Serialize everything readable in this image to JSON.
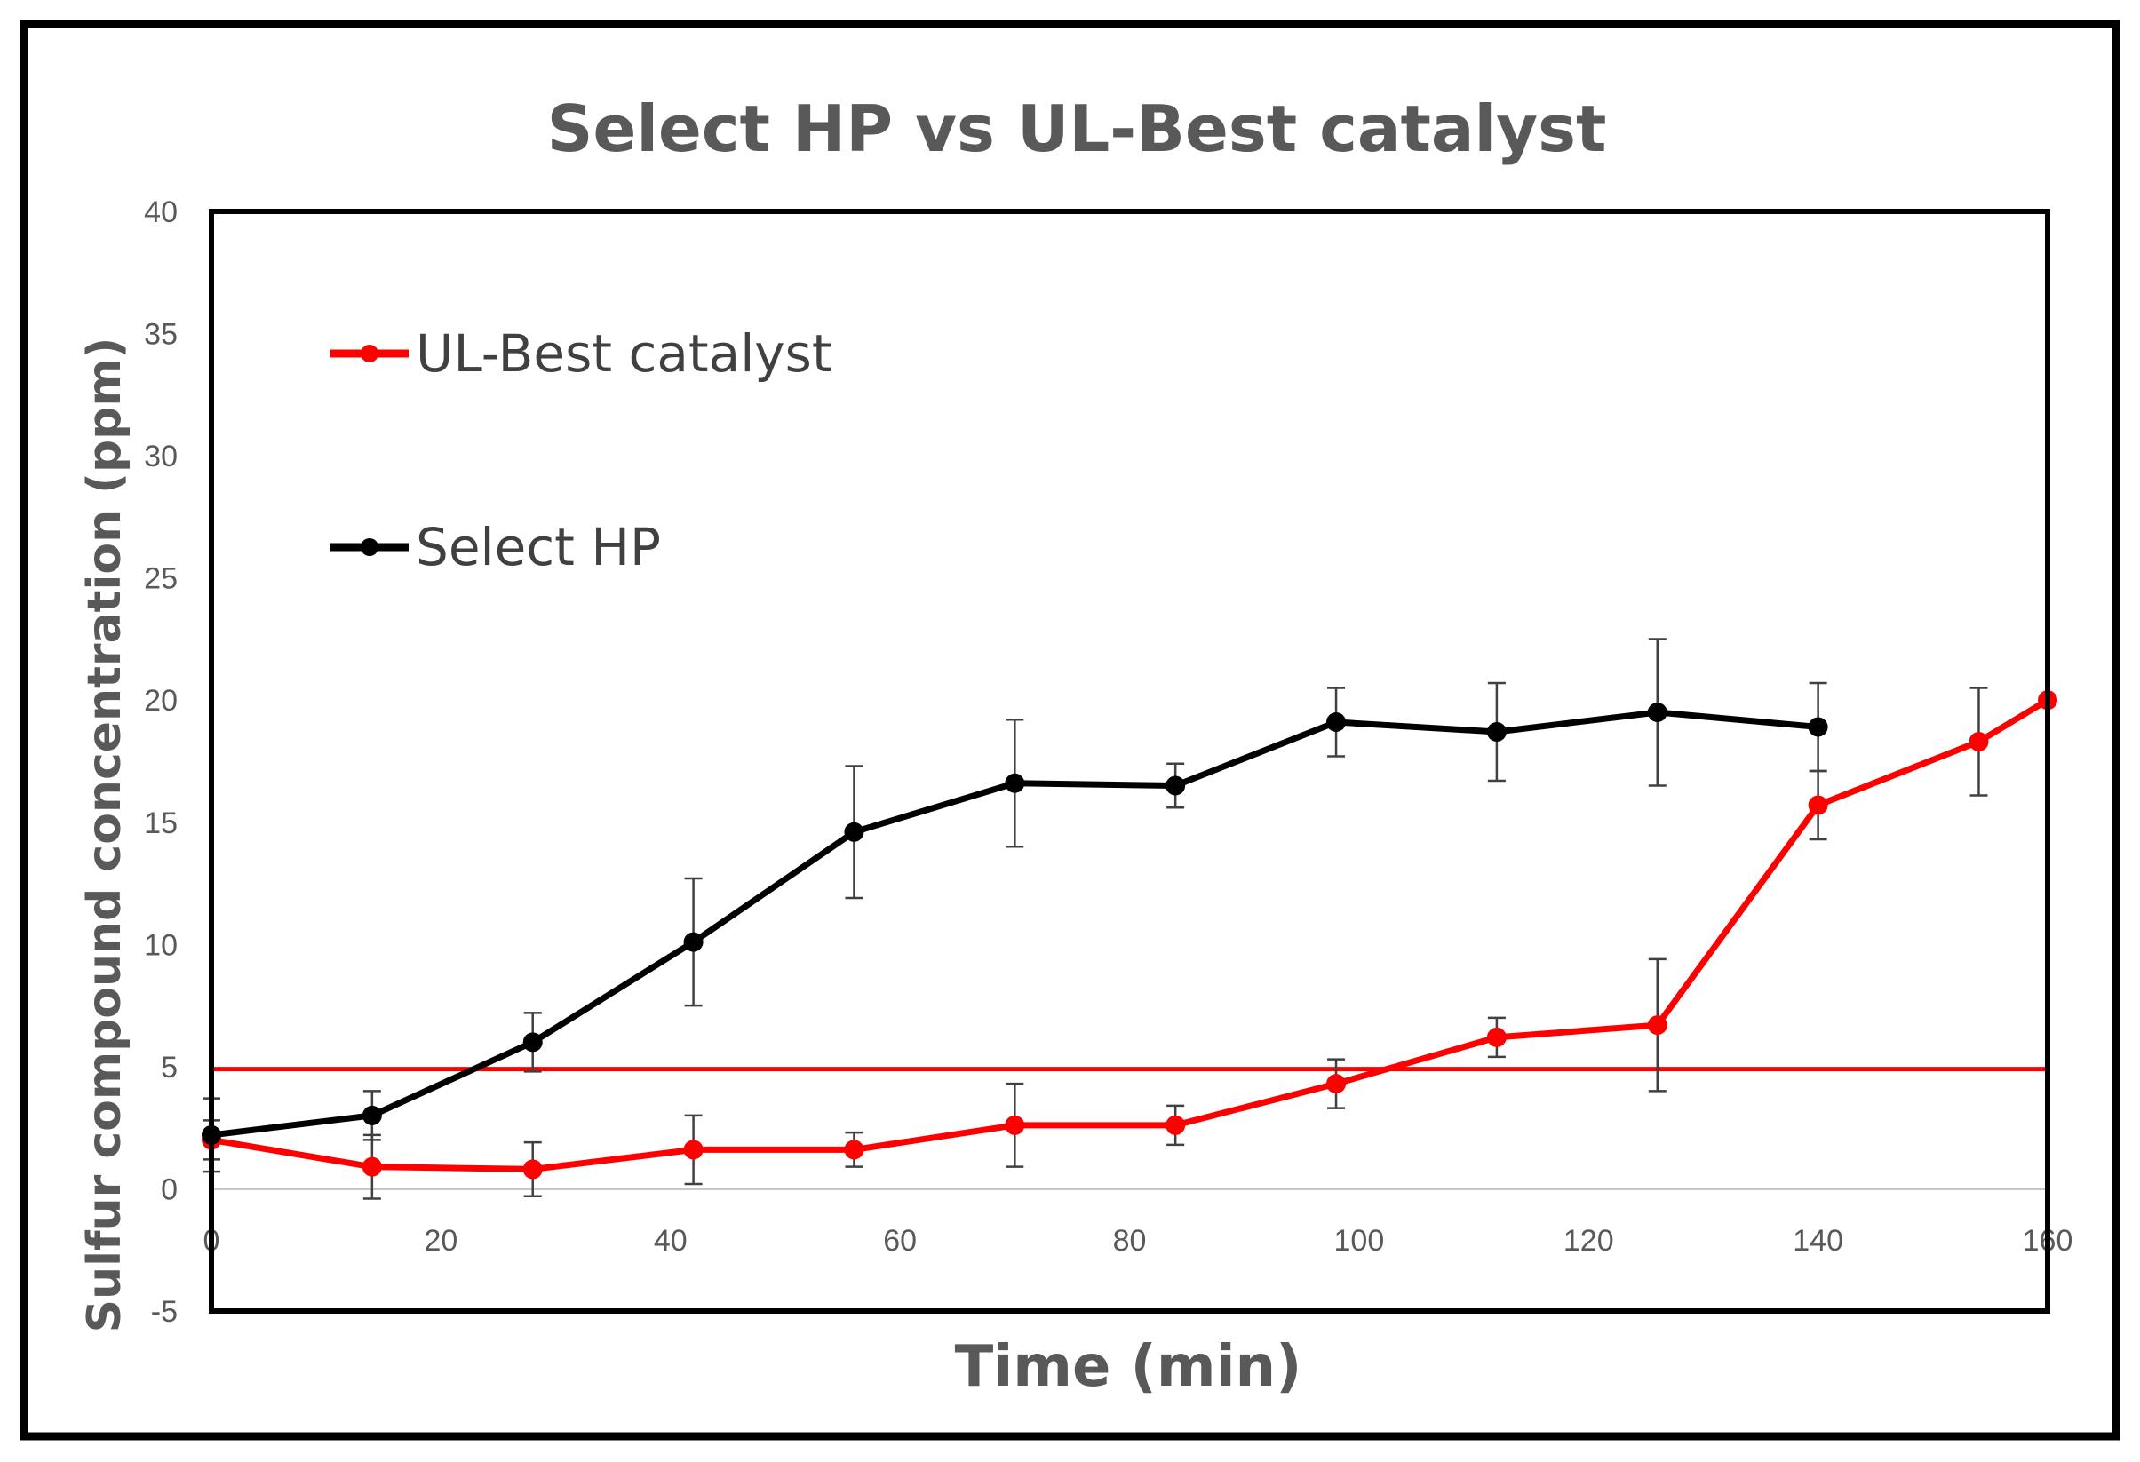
{
  "chart_data": {
    "type": "line",
    "title": "Select HP vs UL-Best catalyst",
    "xlabel": "Time (min)",
    "ylabel": "Sulfur compound concentration (ppm)",
    "xlim": [
      0,
      160
    ],
    "ylim": [
      -5,
      40
    ],
    "x_ticks": [
      0,
      20,
      40,
      60,
      80,
      100,
      120,
      140,
      160
    ],
    "y_ticks": [
      -5,
      0,
      5,
      10,
      15,
      20,
      25,
      30,
      35,
      40
    ],
    "grid": false,
    "legend_position": "top-left",
    "reference_line": {
      "y": 4.9,
      "color": "#ff0000"
    },
    "series": [
      {
        "name": "UL-Best catalyst",
        "color": "#ff0000",
        "x": [
          0,
          14,
          28,
          42,
          56,
          70,
          84,
          98,
          112,
          126,
          140,
          154,
          160
        ],
        "y": [
          2.0,
          0.9,
          0.8,
          1.6,
          1.6,
          2.6,
          2.6,
          4.3,
          6.2,
          6.7,
          15.7,
          18.3,
          20.0
        ],
        "error": [
          0.8,
          1.3,
          1.1,
          1.4,
          0.7,
          1.7,
          0.8,
          1.0,
          0.8,
          2.7,
          1.4,
          2.2,
          0
        ]
      },
      {
        "name": "Select HP",
        "color": "#000000",
        "x": [
          0,
          14,
          28,
          42,
          56,
          70,
          84,
          98,
          112,
          126,
          140
        ],
        "y": [
          2.2,
          3.0,
          6.0,
          10.1,
          14.6,
          16.6,
          16.5,
          19.1,
          18.7,
          19.5,
          18.9
        ],
        "error": [
          1.5,
          1.0,
          1.2,
          2.6,
          2.7,
          2.6,
          0.9,
          1.4,
          2.0,
          3.0,
          1.8
        ]
      }
    ]
  }
}
